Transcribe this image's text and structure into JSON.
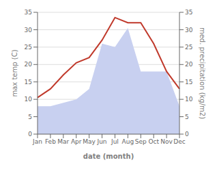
{
  "chart_data": {
    "type": "line",
    "categories": [
      "Jan",
      "Feb",
      "Mar",
      "Apr",
      "May",
      "Jun",
      "Jul",
      "Aug",
      "Sep",
      "Oct",
      "Nov",
      "Dec"
    ],
    "series": [
      {
        "type": "area",
        "color": "#c8d0f0",
        "axis": "y2",
        "values": [
          8.0,
          8.0,
          9.0,
          10.0,
          13.0,
          26.0,
          25.0,
          30.5,
          18.0,
          18.0,
          18.0,
          8.0
        ]
      },
      {
        "type": "line",
        "color": "#c0392b",
        "values": [
          10.5,
          13.0,
          17.0,
          20.5,
          22.0,
          27.0,
          33.5,
          32.0,
          32.0,
          26.0,
          18.0,
          13.0
        ]
      }
    ],
    "xlabel": "date (month)",
    "ylabel": "max temp (C)",
    "y2label": "med. precipitation (kg/m2)",
    "ylim": [
      0,
      35
    ],
    "yticks": [
      0,
      5,
      10,
      15,
      20,
      25,
      30,
      35
    ],
    "y2lim": [
      0,
      35
    ],
    "y2ticks": [
      0,
      5,
      10,
      15,
      20,
      25,
      30,
      35
    ],
    "grid": true
  }
}
